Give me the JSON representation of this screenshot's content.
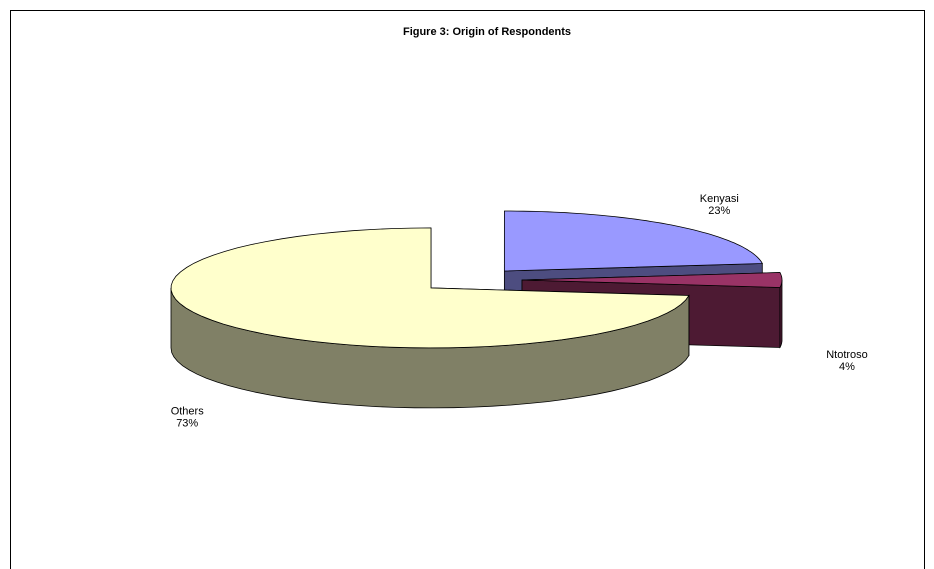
{
  "chart_data": {
    "type": "pie3d",
    "title": "Figure 3: Origin of Respondents",
    "categories": [
      "Kenyasi",
      "Ntotroso",
      "Others"
    ],
    "values": [
      23,
      4,
      73
    ],
    "value_labels": [
      "23%",
      "4%",
      "73%"
    ],
    "colors": [
      "#9999ff",
      "#993366",
      "#ffffcc"
    ]
  }
}
